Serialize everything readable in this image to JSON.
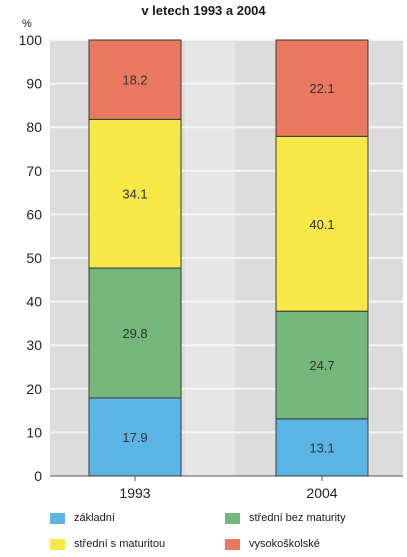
{
  "chart_data": {
    "type": "bar",
    "stacked": true,
    "title": "v letech 1993 a 2004",
    "ylabel": "%",
    "ylim": [
      0,
      100
    ],
    "yticks": [
      0,
      10,
      20,
      30,
      40,
      50,
      60,
      70,
      80,
      90,
      100
    ],
    "grid": true,
    "legend_position": "bottom",
    "categories": [
      "1993",
      "2004"
    ],
    "series": [
      {
        "name": "základní",
        "values": [
          17.9,
          13.1
        ],
        "labels": [
          "17.9",
          "13.1"
        ],
        "color": "#5ab4e5"
      },
      {
        "name": "střední bez maturity",
        "values": [
          29.8,
          24.7
        ],
        "labels": [
          "29.8",
          "24.7"
        ],
        "color": "#74b77a"
      },
      {
        "name": "střední s maturitou",
        "values": [
          34.1,
          40.1
        ],
        "labels": [
          "34.1",
          "40.1"
        ],
        "color": "#f7e848"
      },
      {
        "name": "vysokoškolské",
        "values": [
          18.2,
          22.1
        ],
        "labels": [
          "18.2",
          "22.1"
        ],
        "color": "#e8785e"
      }
    ]
  }
}
